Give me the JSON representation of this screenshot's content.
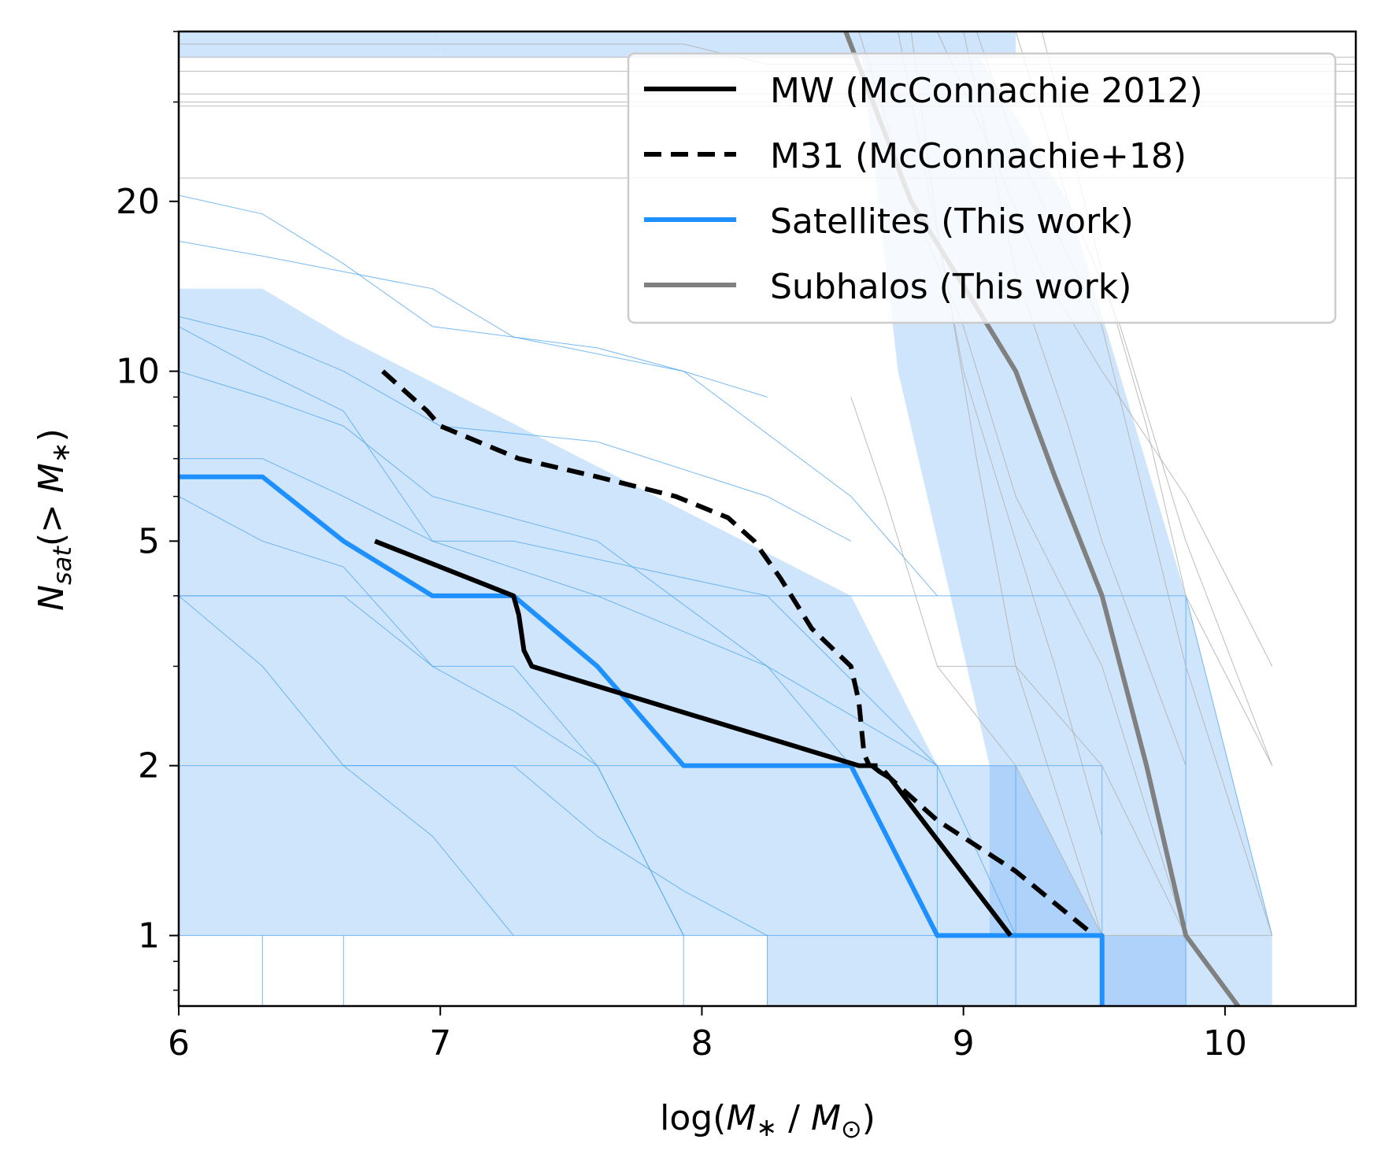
{
  "chart_data": {
    "type": "line",
    "xlabel": "log(M∗ / M⊙)",
    "ylabel": "N_sat(> M∗)",
    "y_scale": "log",
    "xlim": [
      6.0,
      10.5
    ],
    "ylim": [
      0.75,
      40
    ],
    "x_ticks": [
      6,
      7,
      8,
      9,
      10
    ],
    "x_tick_labels": [
      "6",
      "7",
      "8",
      "9",
      "10"
    ],
    "y_ticks": [
      1,
      2,
      5,
      10,
      20
    ],
    "y_tick_labels": [
      "1",
      "2",
      "5",
      "10",
      "20"
    ],
    "grid": false,
    "legend_position": "top-right",
    "colors": {
      "mw": "#000000",
      "m31": "#000000",
      "satellites": "#1e90ff",
      "subhalos": "#808080",
      "band": "#cfe5fb",
      "band_overlap": "#aed2f9",
      "thin_satellites": "#4aa3f0",
      "thin_subhalos": "#b0b0b0"
    },
    "series": [
      {
        "name": "MW (McConnachie 2012)",
        "style": "solid",
        "x": [
          6.75,
          7.28,
          7.3,
          7.32,
          7.35,
          8.6,
          8.65,
          8.68,
          8.72,
          9.18
        ],
        "y": [
          5.0,
          4.0,
          3.7,
          3.2,
          3.0,
          2.0,
          2.0,
          1.95,
          1.9,
          1.0
        ]
      },
      {
        "name": "M31 (McConnachie+18)",
        "style": "dashed",
        "x": [
          6.78,
          6.95,
          7.0,
          7.3,
          7.6,
          7.9,
          8.1,
          8.2,
          8.3,
          8.42,
          8.57,
          8.6,
          8.62,
          8.64,
          8.68,
          8.72,
          8.9,
          9.2,
          9.5
        ],
        "y": [
          10.0,
          8.5,
          8.0,
          7.0,
          6.5,
          6.0,
          5.5,
          5.0,
          4.3,
          3.5,
          3.0,
          2.6,
          2.1,
          2.0,
          2.0,
          1.9,
          1.6,
          1.3,
          1.0
        ]
      },
      {
        "name": "Satellites (This work)",
        "style": "solid",
        "x": [
          6.0,
          6.32,
          6.63,
          6.97,
          7.28,
          7.6,
          7.93,
          8.57,
          8.9,
          9.2,
          9.53,
          9.53
        ],
        "y": [
          6.5,
          6.5,
          5.0,
          4.0,
          4.0,
          3.0,
          2.0,
          2.0,
          1.0,
          1.0,
          1.0,
          0.75
        ]
      },
      {
        "name": "Subhalos (This work)",
        "style": "solid",
        "x": [
          8.55,
          8.8,
          9.05,
          9.2,
          9.35,
          9.53,
          9.7,
          9.85,
          10.05
        ],
        "y": [
          40,
          20,
          13,
          10,
          6.5,
          4.0,
          2.0,
          1.0,
          0.75
        ]
      }
    ],
    "satellite_band": {
      "x": [
        6.0,
        6.32,
        6.32,
        6.63,
        6.63,
        8.57,
        8.9,
        9.53,
        9.53,
        9.85,
        10.18,
        10.18,
        8.25,
        8.25,
        6.0
      ],
      "y": [
        14.0,
        14.0,
        14.0,
        11.5,
        11.5,
        4.0,
        2.0,
        2.0,
        1.0,
        1.0,
        1.0,
        0.75,
        0.75,
        1.0,
        1.0
      ]
    }
  },
  "legend": {
    "entries": [
      "MW (McConnachie 2012)",
      "M31 (McConnachie+18)",
      "Satellites (This work)",
      "Subhalos (This work)"
    ]
  }
}
